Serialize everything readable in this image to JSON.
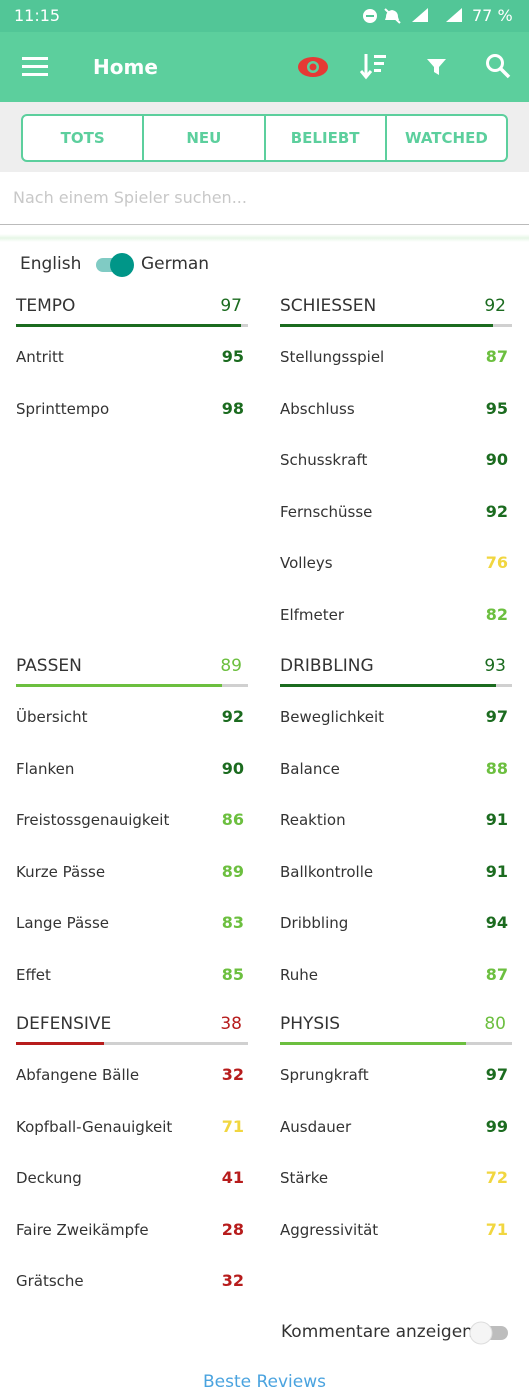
{
  "status_bar": {
    "time": "11:15",
    "battery": "77 %"
  },
  "app_bar": {
    "title": "Home"
  },
  "tabs": [
    "TOTS",
    "NEU",
    "BELIEBT",
    "WATCHED"
  ],
  "search": {
    "placeholder": "Nach einem Spieler suchen..."
  },
  "language_toggle": {
    "left": "English",
    "right": "German"
  },
  "sections": [
    {
      "name": "TEMPO",
      "value": 97,
      "stats": [
        {
          "label": "Antritt",
          "value": 95
        },
        {
          "label": "Sprinttempo",
          "value": 98
        }
      ]
    },
    {
      "name": "SCHIESSEN",
      "value": 92,
      "stats": [
        {
          "label": "Stellungsspiel",
          "value": 87
        },
        {
          "label": "Abschluss",
          "value": 95
        },
        {
          "label": "Schusskraft",
          "value": 90
        },
        {
          "label": "Fernschüsse",
          "value": 92
        },
        {
          "label": "Volleys",
          "value": 76
        },
        {
          "label": "Elfmeter",
          "value": 82
        }
      ]
    },
    {
      "name": "PASSEN",
      "value": 89,
      "stats": [
        {
          "label": "Übersicht",
          "value": 92
        },
        {
          "label": "Flanken",
          "value": 90
        },
        {
          "label": "Freistossgenauigkeit",
          "value": 86
        },
        {
          "label": "Kurze Pässe",
          "value": 89
        },
        {
          "label": "Lange Pässe",
          "value": 83
        },
        {
          "label": "Effet",
          "value": 85
        }
      ]
    },
    {
      "name": "DRIBBLING",
      "value": 93,
      "stats": [
        {
          "label": "Beweglichkeit",
          "value": 97
        },
        {
          "label": "Balance",
          "value": 88
        },
        {
          "label": "Reaktion",
          "value": 91
        },
        {
          "label": "Ballkontrolle",
          "value": 91
        },
        {
          "label": "Dribbling",
          "value": 94
        },
        {
          "label": "Ruhe",
          "value": 87
        }
      ]
    },
    {
      "name": "DEFENSIVE",
      "value": 38,
      "stats": [
        {
          "label": "Abfangene Bälle",
          "value": 32
        },
        {
          "label": "Kopfball-Genauigkeit",
          "value": 71
        },
        {
          "label": "Deckung",
          "value": 41
        },
        {
          "label": "Faire Zweikämpfe",
          "value": 28
        },
        {
          "label": "Grätsche",
          "value": 32
        }
      ]
    },
    {
      "name": "PHYSIS",
      "value": 80,
      "stats": [
        {
          "label": "Sprungkraft",
          "value": 97
        },
        {
          "label": "Ausdauer",
          "value": 99
        },
        {
          "label": "Stärke",
          "value": 72
        },
        {
          "label": "Aggressivität",
          "value": 71
        }
      ]
    }
  ],
  "comments_toggle": "Kommentare anzeigen",
  "footer_link": "Beste Reviews"
}
